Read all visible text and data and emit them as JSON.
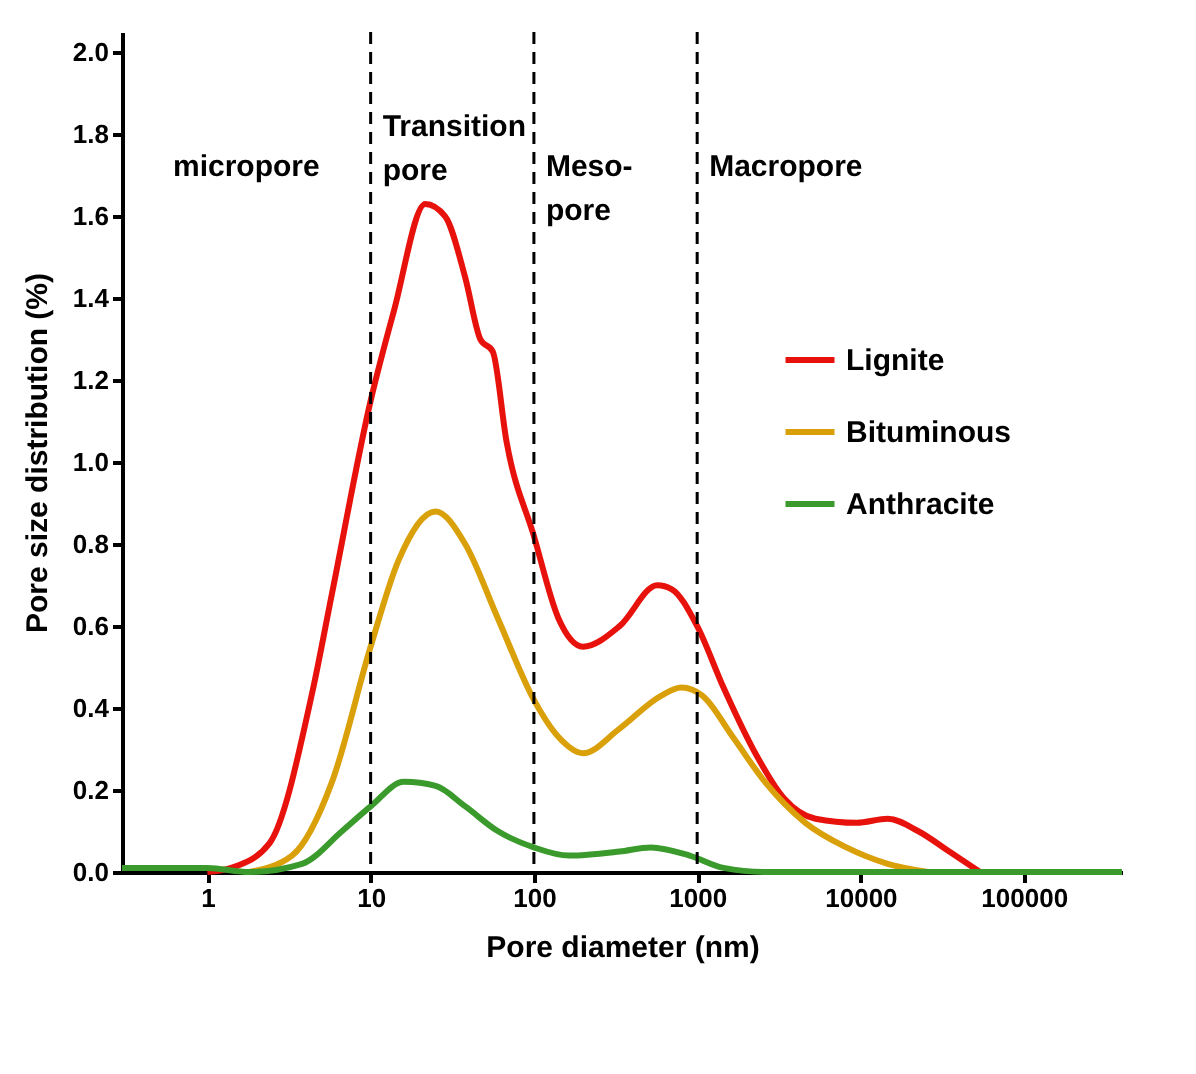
{
  "chart_data": {
    "type": "line",
    "xlabel": "Pore diameter (nm)",
    "ylabel": "Pore size distribution (%)",
    "log": "x",
    "xlim": [
      0.3,
      400000
    ],
    "xticks": [
      1,
      10,
      100,
      1000,
      10000,
      100000
    ],
    "ylim": [
      0,
      2.05
    ],
    "yticks": [
      {
        "value": 0,
        "label": "0.0"
      },
      0.2,
      0.4,
      0.6,
      0.8,
      {
        "value": 1,
        "label": "1.0"
      },
      1.2,
      1.4,
      1.6,
      1.8,
      {
        "value": 2,
        "label": "2.0"
      }
    ],
    "grid": false,
    "legend": "right",
    "marker": "none",
    "line_style": "solid",
    "series": [
      {
        "name": "Lignite",
        "color": "#e8120c",
        "x": [
          1,
          1.4,
          2.4,
          4.4,
          5.8,
          10,
          13.9,
          21.6,
          28.6,
          38,
          47,
          56,
          68,
          100,
          141,
          200,
          335,
          570,
          700,
          1000,
          1450,
          2200,
          3400,
          5300,
          9500,
          14700,
          22500,
          35000,
          54000
        ],
        "values": [
          0,
          0.01,
          0.07,
          0.44,
          0.68,
          1.15,
          1.37,
          1.63,
          1.6,
          1.45,
          1.3,
          1.27,
          1.05,
          0.82,
          0.62,
          0.55,
          0.6,
          0.7,
          0.69,
          0.6,
          0.45,
          0.3,
          0.18,
          0.13,
          0.12,
          0.13,
          0.1,
          0.05,
          0
        ]
      },
      {
        "name": "Bituminous",
        "color": "#d9a00a",
        "x": [
          1.8,
          3.3,
          5.8,
          10,
          14.8,
          25,
          38,
          60,
          100,
          141,
          200,
          335,
          600,
          800,
          1080,
          1650,
          2600,
          4600,
          8200,
          14700,
          26000
        ],
        "values": [
          0,
          0.04,
          0.22,
          0.55,
          0.76,
          0.88,
          0.8,
          0.62,
          0.42,
          0.33,
          0.29,
          0.35,
          0.43,
          0.45,
          0.43,
          0.33,
          0.22,
          0.12,
          0.06,
          0.02,
          0
        ]
      },
      {
        "name": "Anthracite",
        "color": "#3a9a2c",
        "x": [
          0.3,
          0.43,
          1,
          1.8,
          3.8,
          6.7,
          10,
          16,
          25,
          38,
          60,
          100,
          164,
          335,
          520,
          900,
          1450,
          2600,
          400000
        ],
        "values": [
          0.01,
          0.01,
          0.01,
          0,
          0.02,
          0.1,
          0.16,
          0.22,
          0.21,
          0.16,
          0.1,
          0.06,
          0.04,
          0.05,
          0.06,
          0.04,
          0.01,
          0,
          0
        ]
      }
    ],
    "ref_lines": [
      {
        "axis": "x",
        "value": 10,
        "line_style": "dashed",
        "color": "#000000"
      },
      {
        "axis": "x",
        "value": 100,
        "line_style": "dashed",
        "color": "#000000"
      },
      {
        "axis": "x",
        "value": 1000,
        "line_style": "dashed",
        "color": "#000000"
      }
    ],
    "annotations": [
      "micropore",
      "Transition\npore",
      "Meso-\npore",
      "Macropore"
    ]
  }
}
